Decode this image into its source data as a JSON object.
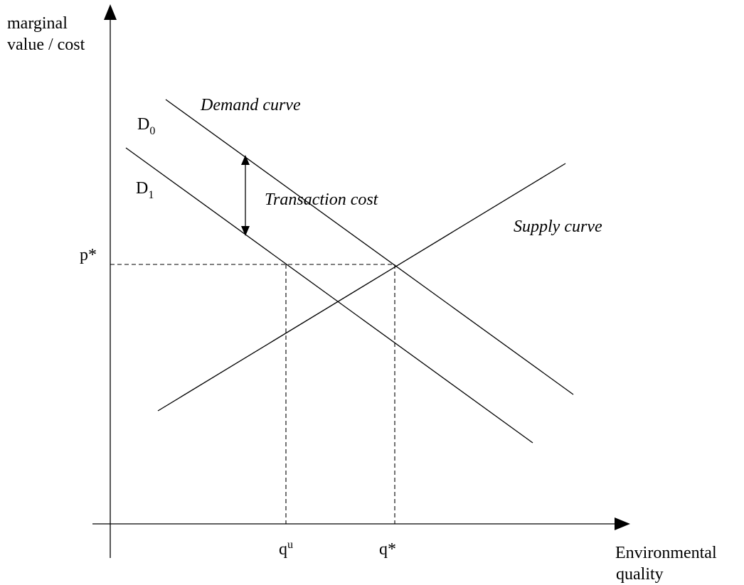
{
  "y_axis_label": [
    "marginal",
    "value / cost"
  ],
  "x_axis_label": [
    "Environmental",
    "quality"
  ],
  "curve_labels": {
    "demand": "Demand curve",
    "supply": "Supply curve",
    "transaction": "Transaction cost"
  },
  "labels": {
    "d0": {
      "base": "D",
      "sub": "0"
    },
    "d1": {
      "base": "D",
      "sub": "1"
    },
    "p_star": "p*",
    "q_u": {
      "base": "q",
      "sup": "u"
    },
    "q_star": "q*"
  }
}
